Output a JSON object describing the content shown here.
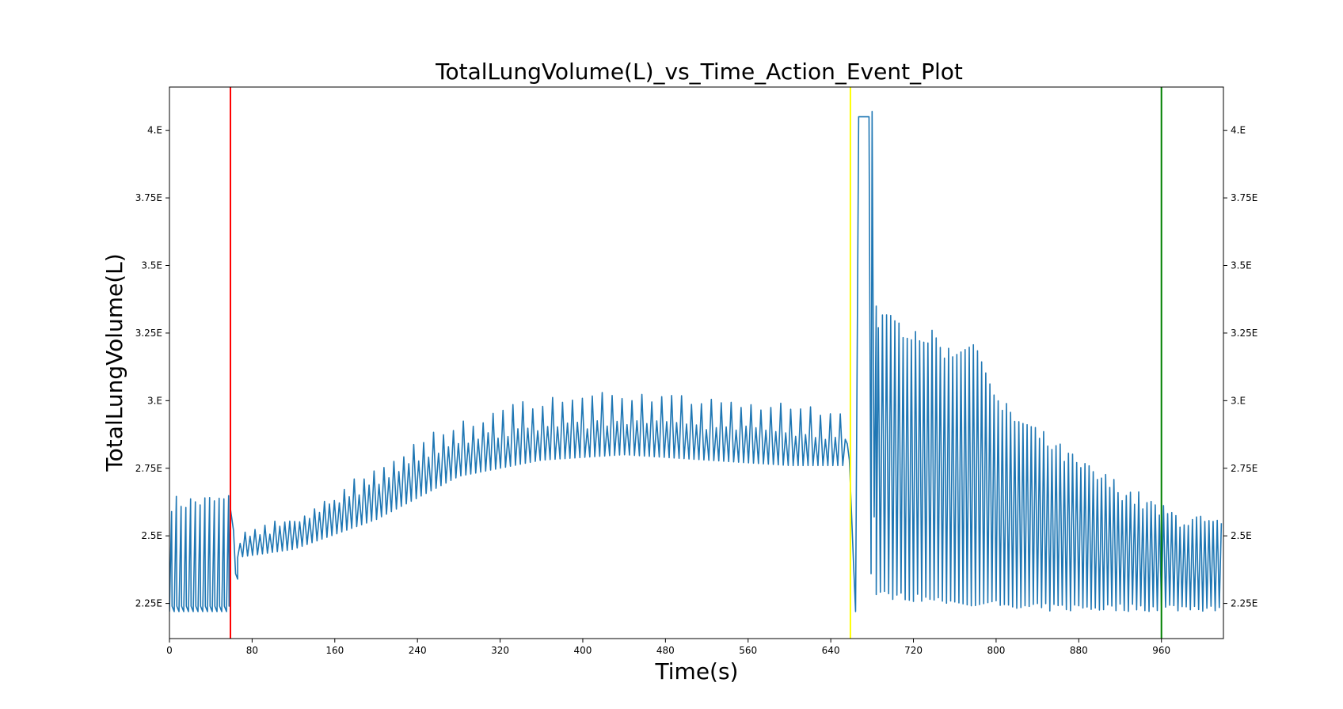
{
  "chart_data": {
    "type": "line",
    "title": "TotalLungVolume(L)_vs_Time_Action_Event_Plot",
    "xlabel": "Time(s)",
    "ylabel": "TotalLungVolume(L)",
    "xlim": [
      0,
      1020
    ],
    "ylim": [
      2.12,
      4.16
    ],
    "x_ticks": [
      0,
      80,
      160,
      240,
      320,
      400,
      480,
      560,
      640,
      720,
      800,
      880,
      960
    ],
    "x_tick_labels": [
      "0",
      "80",
      "160",
      "240",
      "320",
      "400",
      "480",
      "560",
      "640",
      "720",
      "800",
      "880",
      "960"
    ],
    "y_ticks": [
      2.25,
      2.5,
      2.75,
      3.0,
      3.25,
      3.5,
      3.75,
      4.0
    ],
    "y_tick_labels": [
      "2.25E",
      "2.5E",
      "2.75E",
      "3.E",
      "3.25E",
      "3.5E",
      "3.75E",
      "4.E"
    ],
    "grid": false,
    "line_color": "#1f77b4",
    "event_lines": [
      {
        "x": 59,
        "color": "#ff0000"
      },
      {
        "x": 659,
        "color": "#ffff00"
      },
      {
        "x": 960,
        "color": "#008000"
      }
    ],
    "series": [
      {
        "segments": [
          {
            "start": 0,
            "end": 59,
            "period": 4.6,
            "base": 2.22,
            "peak_start": 2.62,
            "peak_end": 2.63,
            "peak_jitter": 0.03
          },
          {
            "start": 59,
            "end": 66,
            "transition": [
              [
                59,
                2.6
              ],
              [
                62,
                2.52
              ],
              [
                64,
                2.36
              ],
              [
                66,
                2.34
              ]
            ]
          },
          {
            "start": 66,
            "end": 656,
            "period": 4.8,
            "trough_trend": [
              [
                66,
                2.42
              ],
              [
                120,
                2.45
              ],
              [
                200,
                2.56
              ],
              [
                280,
                2.72
              ],
              [
                360,
                2.78
              ],
              [
                440,
                2.8
              ],
              [
                520,
                2.78
              ],
              [
                600,
                2.76
              ],
              [
                656,
                2.76
              ]
            ],
            "peak_trend": [
              [
                66,
                2.48
              ],
              [
                120,
                2.55
              ],
              [
                200,
                2.7
              ],
              [
                280,
                2.85
              ],
              [
                360,
                2.9
              ],
              [
                440,
                2.92
              ],
              [
                520,
                2.9
              ],
              [
                600,
                2.88
              ],
              [
                656,
                2.85
              ]
            ],
            "spikes_trend": [
              [
                66,
                2.5
              ],
              [
                120,
                2.56
              ],
              [
                200,
                2.75
              ],
              [
                260,
                2.88
              ],
              [
                320,
                2.96
              ],
              [
                360,
                3.0
              ],
              [
                440,
                3.02
              ],
              [
                520,
                2.99
              ],
              [
                600,
                2.97
              ],
              [
                656,
                2.96
              ]
            ]
          },
          {
            "start": 656,
            "end": 684,
            "transition": [
              [
                656,
                2.84
              ],
              [
                658,
                2.78
              ],
              [
                662,
                2.4
              ],
              [
                664,
                2.22
              ],
              [
                667,
                4.05
              ],
              [
                677,
                4.05
              ],
              [
                679,
                2.36
              ],
              [
                680,
                4.07
              ],
              [
                682,
                2.57
              ],
              [
                684,
                3.35
              ]
            ]
          },
          {
            "start": 684,
            "end": 1020,
            "period": 4.0,
            "base_trend": [
              [
                684,
                2.27
              ],
              [
                740,
                2.25
              ],
              [
                800,
                2.22
              ],
              [
                1020,
                2.22
              ]
            ],
            "peak_trend": [
              [
                684,
                3.3
              ],
              [
                740,
                3.22
              ],
              [
                800,
                2.98
              ],
              [
                880,
                2.75
              ],
              [
                960,
                2.58
              ],
              [
                1020,
                2.52
              ]
            ],
            "shoulder": {
              "start": 755,
              "end": 800,
              "value": 3.1
            }
          }
        ]
      }
    ]
  }
}
